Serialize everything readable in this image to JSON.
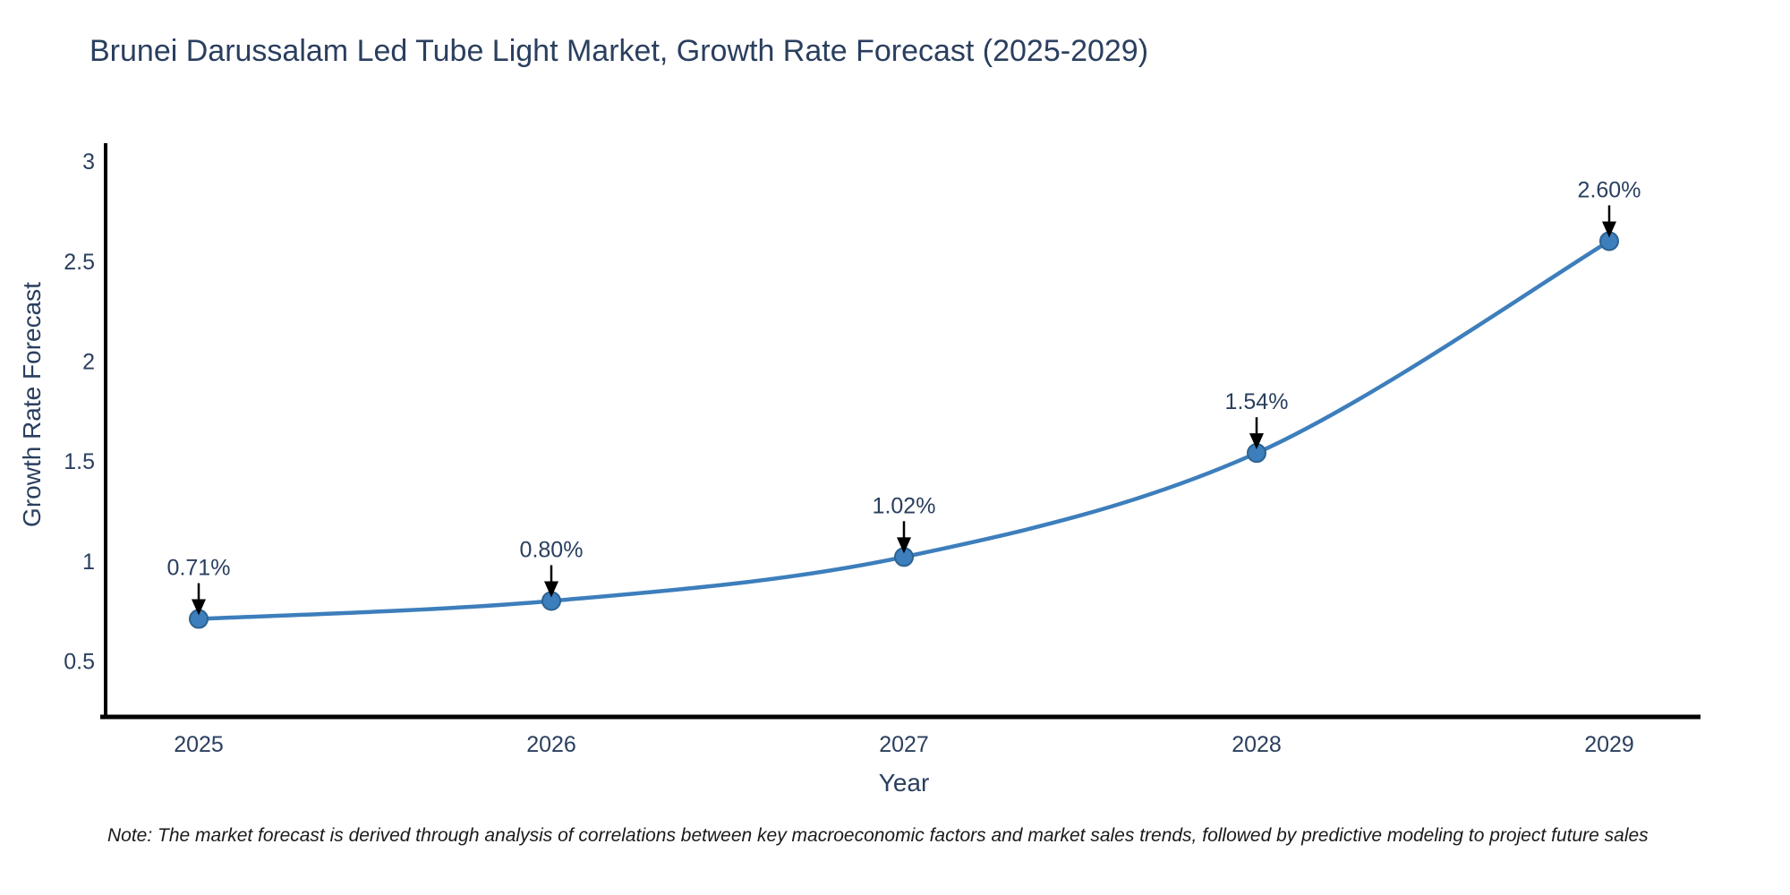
{
  "title": "Brunei Darussalam Led Tube Light Market, Growth Rate Forecast (2025-2029)",
  "note": "Note: The market forecast is derived through analysis of correlations between key macroeconomic factors and market sales trends, followed by predictive modeling to project future sales",
  "chart_data": {
    "type": "line",
    "title": "Brunei Darussalam Led Tube Light Market, Growth Rate Forecast (2025-2029)",
    "x": [
      2025,
      2026,
      2027,
      2028,
      2029
    ],
    "values": [
      0.71,
      0.8,
      1.02,
      1.54,
      2.6
    ],
    "point_labels": [
      "0.71%",
      "0.80%",
      "1.02%",
      "1.54%",
      "2.60%"
    ],
    "xlabel": "Year",
    "ylabel": "Growth Rate Forecast",
    "yticks": [
      0.5,
      1,
      1.5,
      2,
      2.5,
      3
    ],
    "ylim": [
      0.22,
      3.09
    ],
    "grid": false,
    "legend": "none",
    "marker": "circle",
    "annotation_arrows": true,
    "colors": {
      "line": "#3d7ebc",
      "marker_fill": "#3d7ebc",
      "marker_edge": "#2d638f",
      "axis": "#000000",
      "text": "#2a3f5f",
      "arrow": "#000000",
      "note_text": "#1a1a1a",
      "background": "#ffffff"
    }
  }
}
